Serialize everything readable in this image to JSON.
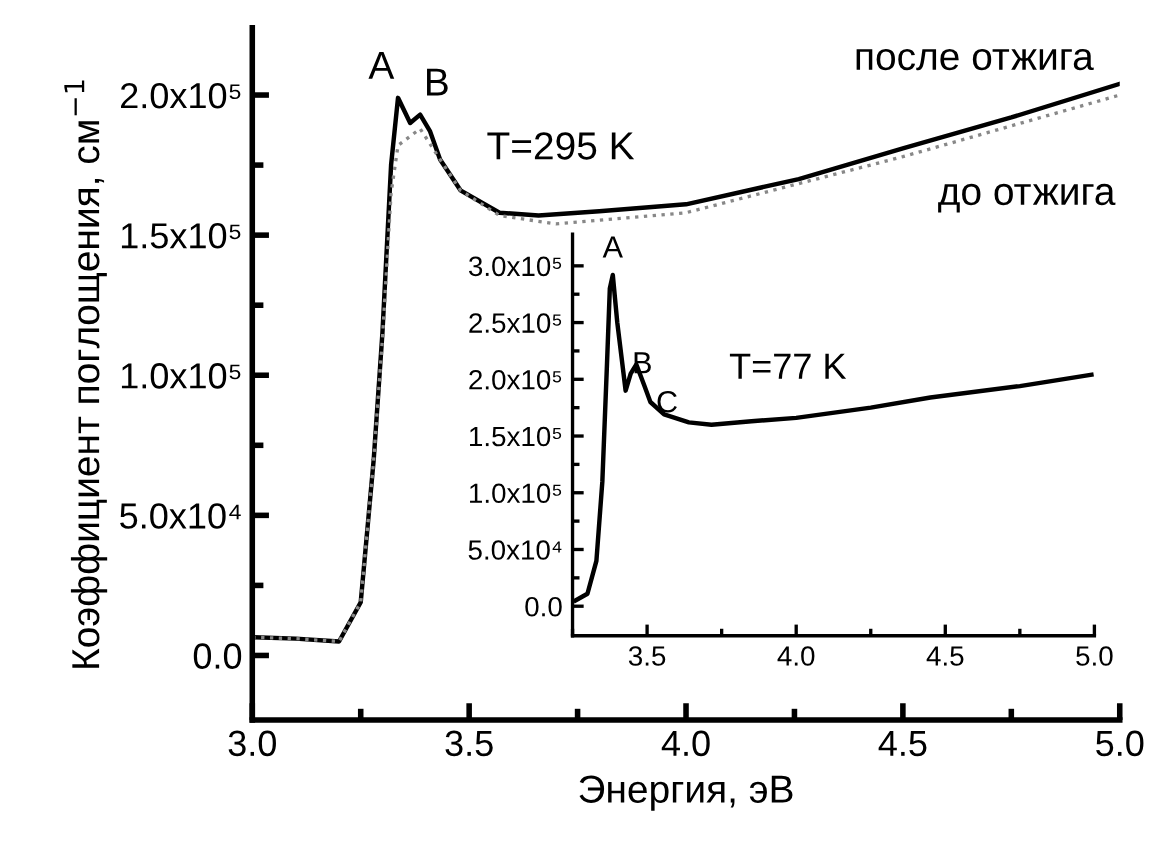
{
  "chart_data": [
    {
      "type": "line",
      "xlabel": "Энергия, эВ",
      "ylabel": "Коэффициент поглощения, см$^{−1}$",
      "legend": false,
      "grid": false,
      "marker": "none",
      "xlim": [
        3.0,
        5.0
      ],
      "ylim": [
        -23000,
        224000
      ],
      "xticks": [
        {
          "value": 3,
          "label": "3.0"
        },
        {
          "value": 3.25,
          "label": null
        },
        {
          "value": 3.5,
          "label": "3.5"
        },
        {
          "value": 3.75,
          "label": null
        },
        {
          "value": 4,
          "label": "4.0"
        },
        {
          "value": 4.25,
          "label": null
        },
        {
          "value": 4.5,
          "label": "4.5"
        },
        {
          "value": 4.75,
          "label": null
        },
        {
          "value": 5,
          "label": "5.0"
        }
      ],
      "yticks": [
        {
          "value": 0,
          "label": "0.0"
        },
        {
          "value": 25000,
          "label": null
        },
        {
          "value": 50000,
          "label": "5.0x10⁴"
        },
        {
          "value": 75000,
          "label": null
        },
        {
          "value": 100000,
          "label": "1.0x10⁵"
        },
        {
          "value": 125000,
          "label": null
        },
        {
          "value": 150000,
          "label": "1.5x10⁵"
        },
        {
          "value": 175000,
          "label": null
        },
        {
          "value": 200000,
          "label": "2.0x10⁵"
        }
      ],
      "series": [
        {
          "name": "после отжига",
          "color": "#000000",
          "line_style": "solid",
          "x": [
            3.0,
            3.1,
            3.2,
            3.25,
            3.28,
            3.3,
            3.32,
            3.336,
            3.364,
            3.387,
            3.41,
            3.433,
            3.48,
            3.57,
            3.66,
            3.8,
            4.0,
            4.26,
            4.5,
            4.75,
            5.0
          ],
          "values": [
            6500,
            6000,
            5000,
            19000,
            70000,
            115000,
            175000,
            199000,
            190000,
            193000,
            187000,
            177000,
            166000,
            158000,
            157000,
            158500,
            161000,
            170000,
            181000,
            192000,
            204000
          ]
        },
        {
          "name": "до отжига",
          "color": "#888888",
          "line_style": "dotted",
          "x": [
            3.0,
            3.1,
            3.2,
            3.25,
            3.28,
            3.3,
            3.32,
            3.336,
            3.387,
            3.433,
            3.48,
            3.57,
            3.7,
            4.0,
            4.5,
            5.0
          ],
          "values": [
            6500,
            6000,
            5000,
            19000,
            70000,
            113000,
            165000,
            182000,
            188000,
            177000,
            166000,
            157000,
            154000,
            158000,
            178000,
            200000
          ]
        }
      ],
      "annotations": [
        {
          "text": "A",
          "x": 3.336,
          "y": 199000
        },
        {
          "text": "B",
          "x": 3.387,
          "y": 193000
        },
        "T=295 K"
      ]
    },
    {
      "type": "line",
      "legend": false,
      "grid": false,
      "marker": "none",
      "xlim": [
        3.25,
        5.0
      ],
      "ylim": [
        -26000,
        328000
      ],
      "xticks": [
        {
          "value": 3.25,
          "label": null
        },
        {
          "value": 3.5,
          "label": "3.5"
        },
        {
          "value": 3.75,
          "label": null
        },
        {
          "value": 4,
          "label": "4.0"
        },
        {
          "value": 4.25,
          "label": null
        },
        {
          "value": 4.5,
          "label": "4.5"
        },
        {
          "value": 4.75,
          "label": null
        },
        {
          "value": 5,
          "label": "5.0"
        }
      ],
      "yticks": [
        {
          "value": 0,
          "label": "0.0"
        },
        {
          "value": 25000,
          "label": null
        },
        {
          "value": 50000,
          "label": "5.0x10⁴"
        },
        {
          "value": 75000,
          "label": null
        },
        {
          "value": 100000,
          "label": "1.0x10⁵"
        },
        {
          "value": 125000,
          "label": null
        },
        {
          "value": 150000,
          "label": "1.5x10⁵"
        },
        {
          "value": 175000,
          "label": null
        },
        {
          "value": 200000,
          "label": "2.0x10⁵"
        },
        {
          "value": 225000,
          "label": null
        },
        {
          "value": 250000,
          "label": "2.5x10⁵"
        },
        {
          "value": 275000,
          "label": null
        },
        {
          "value": 300000,
          "label": "3.0x10⁵"
        }
      ],
      "series": [
        {
          "color": "#000000",
          "line_style": "solid",
          "x": [
            3.26,
            3.3,
            3.33,
            3.35,
            3.365,
            3.375,
            3.385,
            3.4,
            3.428,
            3.445,
            3.464,
            3.49,
            3.511,
            3.557,
            3.64,
            3.716,
            3.85,
            4.0,
            4.25,
            4.45,
            4.75,
            4.99
          ],
          "values": [
            5000,
            11000,
            40000,
            110000,
            210000,
            280000,
            292000,
            250000,
            190000,
            205000,
            213000,
            195000,
            180000,
            169000,
            162000,
            160000,
            163000,
            166000,
            175000,
            184000,
            194000,
            204000
          ]
        }
      ],
      "annotations": [
        {
          "text": "A",
          "x": 3.385,
          "y": 292000
        },
        {
          "text": "B",
          "x": 3.428,
          "y": 190000
        },
        {
          "text": "C",
          "x": 3.511,
          "y": 180000
        },
        "T=77 K"
      ]
    }
  ]
}
